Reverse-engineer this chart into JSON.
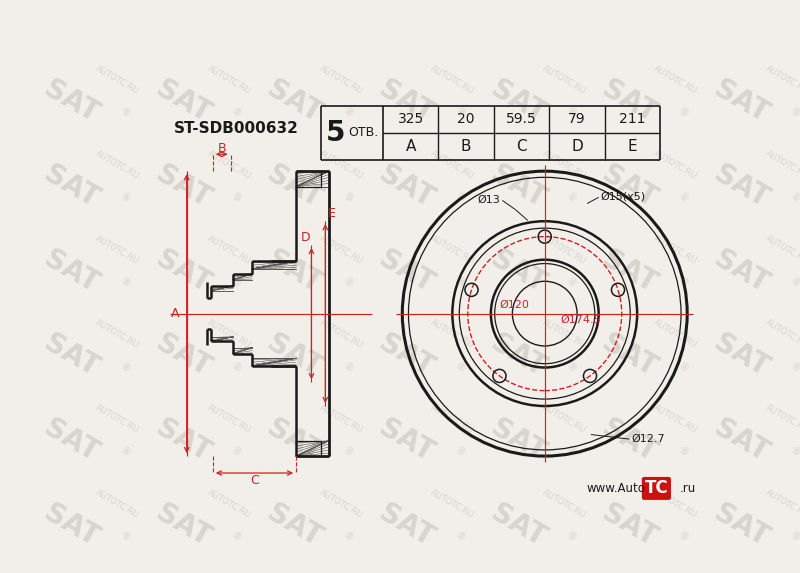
{
  "bg_color": "#f2efea",
  "line_color": "#1a1a1a",
  "red_color": "#cc2222",
  "watermark_color": "#d8d4ce",
  "title_url": "www.AutoTC.ru",
  "part_number": "ST-SDB000632",
  "bolt_count": "5",
  "otv_label": "ОТВ.",
  "table_headers": [
    "A",
    "B",
    "C",
    "D",
    "E"
  ],
  "table_values": [
    "325",
    "20",
    "59.5",
    "79",
    "211"
  ],
  "dim_A": 325,
  "dim_B": 20,
  "dim_C": 59.5,
  "dim_D": 79,
  "dim_E": 211
}
